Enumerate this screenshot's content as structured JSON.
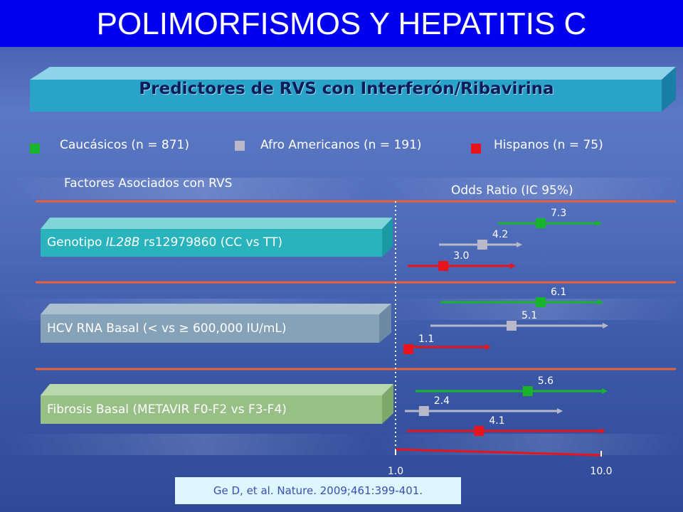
{
  "title": "POLIMORFISMOS Y HEPATITIS C",
  "subtitle": "Predictores de RVS con Interferón/Ribavirina",
  "legend": [
    {
      "label": "Caucásicos (n = 871)",
      "color": "#18b52c"
    },
    {
      "label": "Afro Americanos (n = 191)",
      "color": "#b8b8c8"
    },
    {
      "label": "Hispanos (n = 75)",
      "color": "#e8141c"
    }
  ],
  "headers": {
    "factors": "Factores Asociados con RVS",
    "odds": "Odds Ratio (IC 95%)"
  },
  "rows": [
    {
      "pre": "Genotipo ",
      "italic": "IL28B",
      "post": " rs12979860 (CC vs TT)"
    },
    {
      "pre": "HCV RNA Basal (< vs ≥ 600,000 IU/mL)",
      "italic": "",
      "post": ""
    },
    {
      "pre": "Fibrosis Basal  (METAVIR F0-F2 vs F3-F4)",
      "italic": "",
      "post": ""
    }
  ],
  "citation": "Ge D, et al. Nature. 2009;461:399-401.",
  "chart_data": {
    "type": "scatter",
    "xlabel": "",
    "ticks": [
      "1.0",
      "10.0"
    ],
    "xlim": [
      1.0,
      10.0
    ],
    "series": [
      {
        "name": "Caucásicos (n = 871)",
        "color": "#18b52c"
      },
      {
        "name": "Afro Americanos (n = 191)",
        "color": "#b8b8c8"
      },
      {
        "name": "Hispanos (n = 75)",
        "color": "#e8141c"
      }
    ],
    "categories": [
      "Genotipo IL28B rs12979860 (CC vs TT)",
      "HCV RNA Basal (< vs ≥ 600,000 IU/mL)",
      "Fibrosis Basal  (METAVIR F0-F2 vs F3-F4)"
    ],
    "points": [
      {
        "category": 0,
        "series": 0,
        "or": 7.3,
        "label": "7.3"
      },
      {
        "category": 0,
        "series": 1,
        "or": 4.2,
        "label": "4.2"
      },
      {
        "category": 0,
        "series": 2,
        "or": 3.0,
        "label": "3.0"
      },
      {
        "category": 1,
        "series": 0,
        "or": 6.1,
        "label": "6.1"
      },
      {
        "category": 1,
        "series": 1,
        "or": 5.1,
        "label": "5.1"
      },
      {
        "category": 1,
        "series": 2,
        "or": 1.1,
        "label": "1.1"
      },
      {
        "category": 2,
        "series": 0,
        "or": 5.6,
        "label": "5.6"
      },
      {
        "category": 2,
        "series": 1,
        "or": 2.4,
        "label": "2.4"
      },
      {
        "category": 2,
        "series": 2,
        "or": 4.1,
        "label": "4.1"
      }
    ]
  }
}
